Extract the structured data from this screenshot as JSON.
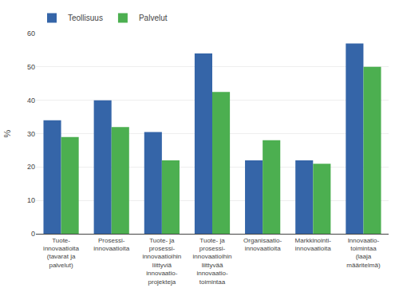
{
  "chart_data": {
    "type": "bar",
    "categories": [
      "Tuote-\ninnovaatioita\n(tavarat ja\npalvelut)",
      "Prosessi-\ninnovaatioita",
      "Tuote- ja\nprosessi-\ninnovaatioihin\nliittyviä\ninnovaatio-\nprojekteja",
      "Tuote- ja\nprosessi-\ninnovaatioihin\nliittyvää\ninnovaatio-\ntoimintaa",
      "Organisaatio-\ninnovaatioita",
      "Markkinointi-\ninnovaatioita",
      "Innovaatio-\ntoimintaa\n(laaja\nmääritelmä)"
    ],
    "series": [
      {
        "name": "Teollisuus",
        "color": "#3565A8",
        "values": [
          34,
          40,
          30.5,
          54,
          22,
          22,
          57
        ]
      },
      {
        "name": "Palvelut",
        "color": "#4CAF50",
        "values": [
          29,
          32,
          22,
          42.5,
          28,
          21,
          50
        ]
      }
    ],
    "ylabel": "%",
    "ylim": [
      0,
      60
    ],
    "yticks": [
      0,
      10,
      20,
      30,
      40,
      50,
      60
    ],
    "grid": true,
    "legend": "upper left"
  }
}
